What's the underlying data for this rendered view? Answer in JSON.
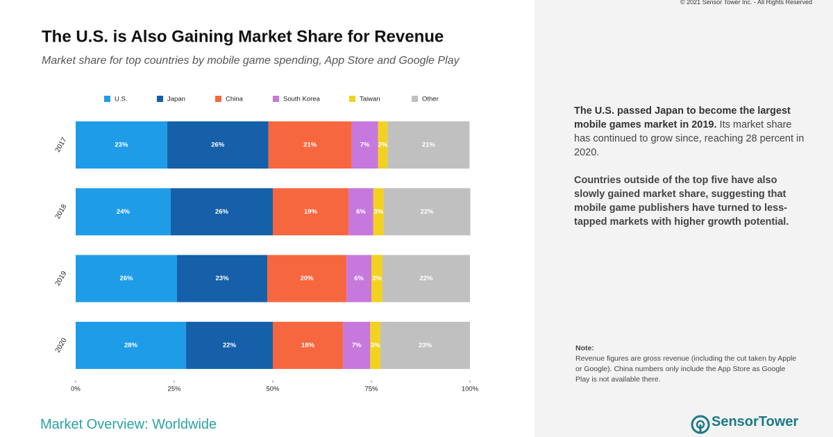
{
  "copyright": "© 2021 Sensor Tower Inc. - All Rights Reserved",
  "footer": "Market Overview: Worldwide",
  "logo": "SensorTower",
  "sidebar": {
    "p1_bold": "The U.S. passed Japan to become the largest mobile games market in 2019.",
    "p1_rest": " Its market share has continued to grow since, reaching 28 percent in 2020.",
    "p2": "Countries outside of the top five have also slowly gained market share, suggesting that mobile game publishers have turned to less-tapped markets with higher growth potential.",
    "note_title": "Note:",
    "note": "Revenue figures are gross revenue (including the cut taken by Apple or Google). China numbers only include the App Store as Google Play is not available there."
  },
  "chart_data": {
    "type": "stacked_barh",
    "title": "The U.S. is Also Gaining Market Share for Revenue",
    "subtitle": "Market share for top countries by mobile game spending, App Store and Google Play",
    "categories": [
      "2017",
      "2018",
      "2019",
      "2020"
    ],
    "series": [
      {
        "name": "U.S.",
        "color": "#1f9ce8",
        "values": [
          23.2,
          24.1,
          25.7,
          28.0
        ],
        "value_labels": [
          "23%",
          "24%",
          "26%",
          "28%"
        ]
      },
      {
        "name": "Japan",
        "color": "#1560a8",
        "values": [
          25.7,
          25.9,
          22.9,
          22.0
        ],
        "value_labels": [
          "26%",
          "26%",
          "23%",
          "22%"
        ]
      },
      {
        "name": "China",
        "color": "#f7673f",
        "values": [
          21.1,
          19.2,
          20.1,
          17.8
        ],
        "value_labels": [
          "21%",
          "19%",
          "20%",
          "18%"
        ]
      },
      {
        "name": "South Korea",
        "color": "#c678dd",
        "values": [
          6.7,
          6.3,
          6.3,
          6.9
        ],
        "value_labels": [
          "7%",
          "6%",
          "6%",
          "7%"
        ]
      },
      {
        "name": "Taiwan",
        "color": "#f2d21f",
        "values": [
          2.4,
          2.6,
          2.8,
          2.6
        ],
        "value_labels": [
          "2%",
          "3%",
          "3%",
          "3%"
        ]
      },
      {
        "name": "Other",
        "color": "#c0c0c0",
        "values": [
          20.8,
          22.0,
          22.2,
          22.7
        ],
        "value_labels": [
          "21%",
          "22%",
          "22%",
          "23%"
        ]
      }
    ],
    "xlim": [
      0,
      100
    ],
    "xticks": [
      {
        "value": 0,
        "label": "0%"
      },
      {
        "value": 25,
        "label": "25%"
      },
      {
        "value": 50,
        "label": "50%"
      },
      {
        "value": 75,
        "label": "75%"
      },
      {
        "value": 100,
        "label": "100%"
      }
    ],
    "legend": "top"
  }
}
